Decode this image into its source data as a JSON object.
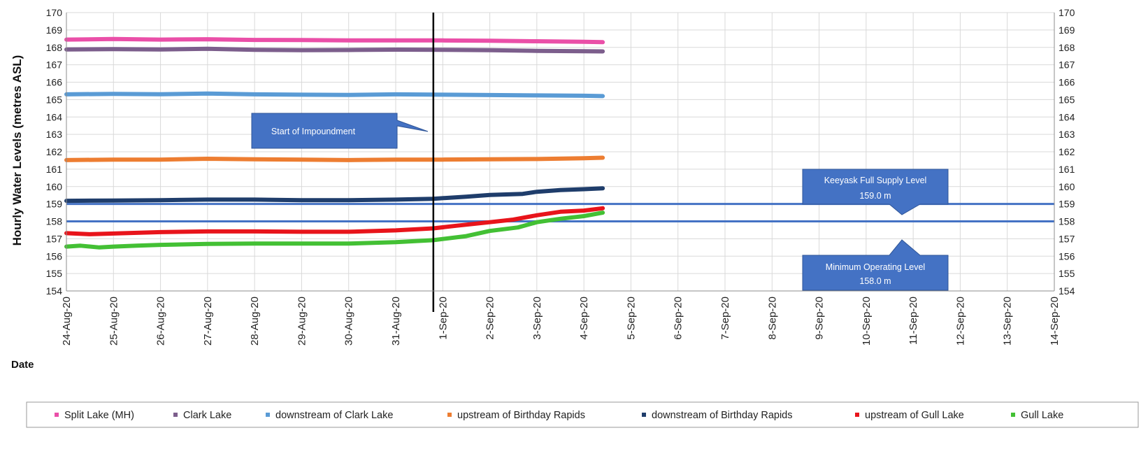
{
  "chart_data": {
    "type": "line",
    "title": "",
    "ylabel": "Hourly Water Levels (metres ASL)",
    "xlabel": "Date",
    "ylim": [
      154,
      170
    ],
    "ytick_step": 1,
    "x_categories": [
      "24-Aug-20",
      "25-Aug-20",
      "26-Aug-20",
      "27-Aug-20",
      "28-Aug-20",
      "29-Aug-20",
      "30-Aug-20",
      "31-Aug-20",
      "1-Sep-20",
      "2-Sep-20",
      "3-Sep-20",
      "4-Sep-20",
      "5-Sep-20",
      "6-Sep-20",
      "7-Sep-20",
      "8-Sep-20",
      "9-Sep-20",
      "10-Sep-20",
      "11-Sep-20",
      "12-Sep-20",
      "13-Sep-20",
      "14-Sep-20"
    ],
    "grid": true,
    "legend_position": "bottom",
    "series": [
      {
        "name": "Split Lake (MH)",
        "color": "#ea4fa8",
        "x": [
          0,
          1,
          2,
          3,
          4,
          5,
          6,
          7,
          8,
          9,
          10,
          11,
          11.4
        ],
        "y": [
          168.45,
          168.48,
          168.45,
          168.47,
          168.43,
          168.42,
          168.4,
          168.4,
          168.4,
          168.38,
          168.35,
          168.32,
          168.3
        ]
      },
      {
        "name": "Clark Lake",
        "color": "#7c5e8c",
        "x": [
          0,
          1,
          2,
          3,
          4,
          5,
          6,
          7,
          8,
          9,
          10,
          11,
          11.4
        ],
        "y": [
          167.88,
          167.9,
          167.88,
          167.92,
          167.86,
          167.84,
          167.85,
          167.87,
          167.86,
          167.84,
          167.8,
          167.78,
          167.77
        ]
      },
      {
        "name": "downstream of Clark Lake",
        "color": "#5a9bd5",
        "x": [
          0,
          1,
          2,
          3,
          4,
          5,
          6,
          7,
          8,
          9,
          10,
          11,
          11.4
        ],
        "y": [
          165.3,
          165.33,
          165.31,
          165.35,
          165.3,
          165.28,
          165.27,
          165.3,
          165.28,
          165.26,
          165.24,
          165.22,
          165.2
        ]
      },
      {
        "name": "upstream of Birthday Rapids",
        "color": "#ed7d31",
        "x": [
          0,
          1,
          2,
          3,
          4,
          5,
          6,
          7,
          8,
          9,
          10,
          11,
          11.4
        ],
        "y": [
          161.52,
          161.55,
          161.55,
          161.6,
          161.57,
          161.55,
          161.52,
          161.55,
          161.55,
          161.57,
          161.58,
          161.63,
          161.66
        ]
      },
      {
        "name": "downstream of Birthday Rapids",
        "color": "#1f3d6b",
        "x": [
          0,
          1,
          2,
          3,
          4,
          5,
          6,
          7,
          7.8,
          8.5,
          9,
          9.7,
          10,
          10.5,
          11,
          11.4
        ],
        "y": [
          159.18,
          159.2,
          159.22,
          159.25,
          159.25,
          159.22,
          159.22,
          159.25,
          159.3,
          159.42,
          159.52,
          159.58,
          159.7,
          159.8,
          159.85,
          159.9
        ]
      },
      {
        "name": "upstream of Gull Lake",
        "color": "#e8141b",
        "x": [
          0,
          0.5,
          1,
          2,
          3,
          4,
          5,
          6,
          7,
          7.8,
          8.3,
          9,
          9.5,
          10,
          10.5,
          11,
          11.4
        ],
        "y": [
          157.32,
          157.26,
          157.3,
          157.38,
          157.42,
          157.42,
          157.4,
          157.4,
          157.48,
          157.6,
          157.75,
          157.95,
          158.1,
          158.35,
          158.55,
          158.62,
          158.75
        ]
      },
      {
        "name": "Gull Lake",
        "color": "#43c034",
        "x": [
          0,
          0.3,
          0.7,
          1,
          1.5,
          2,
          3,
          4,
          5,
          6,
          7,
          7.8,
          8.5,
          9,
          9.6,
          10,
          10.5,
          11,
          11.4
        ],
        "y": [
          156.55,
          156.6,
          156.5,
          156.55,
          156.6,
          156.65,
          156.7,
          156.72,
          156.72,
          156.72,
          156.8,
          156.92,
          157.15,
          157.45,
          157.65,
          157.95,
          158.15,
          158.3,
          158.5
        ]
      }
    ],
    "reference_lines": [
      {
        "y": 159.0,
        "color": "#4472c4"
      },
      {
        "y": 158.0,
        "color": "#4472c4"
      }
    ],
    "event_line": {
      "x": 7.8,
      "color": "#000000"
    },
    "annotations": [
      {
        "text": "Start of Impoundment"
      },
      {
        "text": "Keeyask Full Supply Level",
        "text2": "159.0 m"
      },
      {
        "text": "Minimum Operating Level",
        "text2": "158.0 m"
      }
    ]
  }
}
